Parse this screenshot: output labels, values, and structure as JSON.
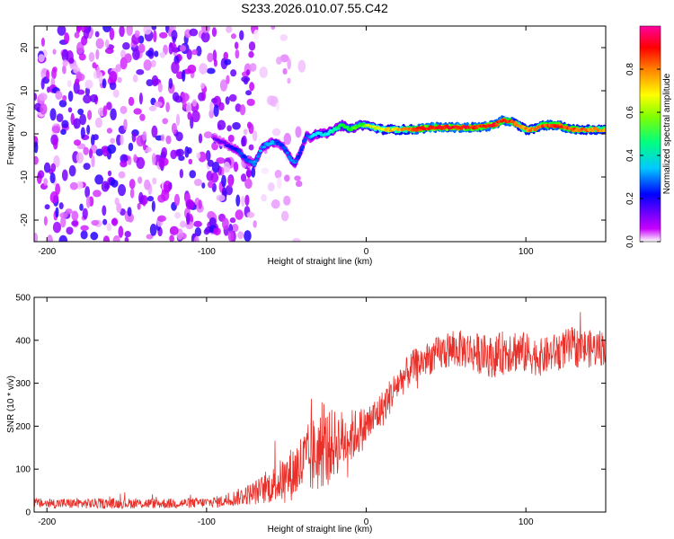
{
  "title": "S233.2026.010.07.55.C42",
  "chart_data": [
    {
      "type": "heatmap",
      "panel": "spectrogram",
      "xlabel": "Height of straight line (km)",
      "ylabel": "Frequency (Hz)",
      "xlim": [
        -208,
        150
      ],
      "ylim": [
        -25,
        25
      ],
      "xticks": [
        -200,
        -100,
        0,
        100
      ],
      "yticks": [
        -20,
        -10,
        0,
        10,
        20
      ],
      "xtick_labels": [
        "-200",
        "-100",
        "0",
        "100"
      ],
      "ytick_labels": [
        "-20",
        "-10",
        "0",
        "10",
        "20"
      ],
      "colorbar": {
        "label": "Normalized spectral amplitude",
        "range": [
          0,
          1
        ],
        "ticks": [
          0.0,
          0.2,
          0.4,
          0.6,
          0.8
        ],
        "tick_labels": [
          "0.0",
          "0.2",
          "0.4",
          "0.6",
          "0.8"
        ],
        "colormap": [
          "#ffffff",
          "#c800ff",
          "#0000ff",
          "#00ffff",
          "#00ff00",
          "#ffff00",
          "#ff8000",
          "#ff0000",
          "#ff00a0"
        ]
      },
      "signal_track": {
        "x": [
          -95,
          -90,
          -85,
          -80,
          -75,
          -70,
          -65,
          -60,
          -57,
          -55,
          -52,
          -50,
          -47,
          -45,
          -42,
          -40,
          -37,
          -35,
          -32,
          -30,
          -25,
          -20,
          -15,
          -10,
          -5,
          0,
          10,
          20,
          30,
          40,
          50,
          60,
          70,
          80,
          85,
          90,
          95,
          100,
          105,
          110,
          120,
          130,
          140,
          150
        ],
        "y": [
          -1,
          -2,
          -3,
          -4,
          -6,
          -7,
          -3,
          -2,
          -2,
          -2,
          -3,
          -4,
          -6,
          -7,
          -5,
          -3,
          0,
          -1,
          0,
          0,
          0,
          1,
          2,
          1,
          2,
          2,
          1,
          1,
          1,
          1.5,
          1.5,
          1.5,
          1.5,
          2,
          3,
          3,
          2,
          1,
          1,
          2,
          2,
          1,
          1,
          1
        ],
        "amplitude": [
          0.2,
          0.2,
          0.25,
          0.3,
          0.3,
          0.35,
          0.35,
          0.35,
          0.35,
          0.3,
          0.3,
          0.3,
          0.35,
          0.35,
          0.3,
          0.3,
          0.3,
          0.35,
          0.4,
          0.4,
          0.4,
          0.45,
          0.5,
          0.55,
          0.55,
          0.6,
          0.7,
          0.75,
          0.85,
          0.95,
          0.95,
          0.95,
          0.9,
          0.95,
          0.9,
          0.9,
          0.8,
          0.8,
          0.8,
          0.85,
          0.9,
          0.85,
          0.8,
          0.8
        ]
      },
      "noise_region_x": [
        -208,
        -70
      ],
      "noise_amplitude": 0.15
    },
    {
      "type": "line",
      "panel": "snr",
      "xlabel": "Height of straight line (km)",
      "ylabel": "SNR (10 * v/v)",
      "xlim": [
        -208,
        150
      ],
      "ylim": [
        0,
        500
      ],
      "xticks": [
        -200,
        -100,
        0,
        100
      ],
      "yticks": [
        0,
        100,
        200,
        300,
        400,
        500
      ],
      "xtick_labels": [
        "-200",
        "-100",
        "0",
        "100"
      ],
      "ytick_labels": [
        "0",
        "100",
        "200",
        "300",
        "400",
        "500"
      ],
      "color": "#e8302a",
      "series": [
        {
          "name": "SNR",
          "x": [
            -208,
            -180,
            -150,
            -120,
            -100,
            -90,
            -80,
            -70,
            -60,
            -50,
            -40,
            -30,
            -20,
            -10,
            0,
            10,
            20,
            30,
            40,
            50,
            60,
            70,
            80,
            90,
            100,
            110,
            120,
            130,
            140,
            150
          ],
          "values": [
            20,
            20,
            20,
            20,
            22,
            25,
            35,
            45,
            60,
            80,
            110,
            140,
            160,
            175,
            200,
            240,
            300,
            340,
            360,
            375,
            380,
            370,
            360,
            380,
            370,
            360,
            375,
            385,
            380,
            385
          ],
          "spread": [
            15,
            15,
            15,
            15,
            15,
            18,
            25,
            35,
            50,
            70,
            100,
            120,
            100,
            80,
            60,
            55,
            50,
            50,
            50,
            55,
            55,
            60,
            60,
            70,
            60,
            55,
            55,
            60,
            55,
            55
          ]
        }
      ]
    }
  ]
}
